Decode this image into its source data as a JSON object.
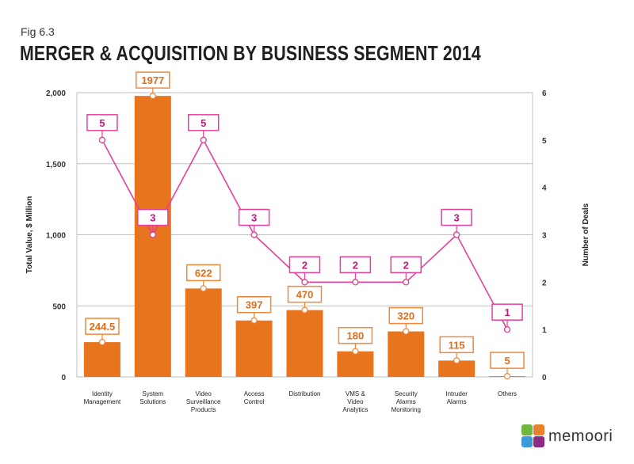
{
  "figure": {
    "label": "Fig 6.3",
    "title": "MERGER & ACQUISITION BY BUSINESS SEGMENT 2014"
  },
  "brand": {
    "name": "memoori",
    "colors": [
      "#6fb73b",
      "#e8812c",
      "#3c9ad6",
      "#8b2b83"
    ]
  },
  "colors": {
    "bar": "#e8741e",
    "bar_label_border": "#f0883a",
    "bar_label_text": "#e06d1a",
    "line": "#e6409a",
    "line_label_text": "#c2187a",
    "grid": "#bfbfbf"
  },
  "chart_data": {
    "type": "bar",
    "title": "MERGER & ACQUISITION BY BUSINESS SEGMENT 2014",
    "categories": [
      [
        "Identity",
        "Management"
      ],
      [
        "System",
        "Solutions"
      ],
      [
        "Video",
        "Surveillance",
        "Products"
      ],
      [
        "Access",
        "Control"
      ],
      [
        "Distribution"
      ],
      [
        "VMS &",
        "Video",
        "Analytics"
      ],
      [
        "Security",
        "Alarms",
        "Monitoring"
      ],
      [
        "Intruder",
        "Alarms"
      ],
      [
        "Others"
      ]
    ],
    "series": [
      {
        "name": "Total Value, $ Million",
        "type": "bar",
        "axis": "left",
        "values": [
          244.5,
          1977,
          622,
          397,
          470,
          180,
          320,
          115,
          5
        ],
        "labels": [
          "244.5",
          "1977",
          "622",
          "397",
          "470",
          "180",
          "320",
          "115",
          "5"
        ]
      },
      {
        "name": "Number of Deals",
        "type": "line",
        "axis": "right",
        "values": [
          5,
          3,
          5,
          3,
          2,
          2,
          2,
          3,
          1
        ],
        "labels": [
          "5",
          "3",
          "5",
          "3",
          "2",
          "2",
          "2",
          "3",
          "1"
        ]
      }
    ],
    "ylabel": "Total Value, $ Million",
    "y2label": "Number of Deals",
    "ylim": [
      0,
      2000
    ],
    "y2lim": [
      0,
      6
    ],
    "yticks": [
      "0",
      "500",
      "1,000",
      "1,500",
      "2,000"
    ],
    "y2ticks": [
      "0",
      "1",
      "2",
      "3",
      "4",
      "5",
      "6"
    ],
    "grid": true
  }
}
